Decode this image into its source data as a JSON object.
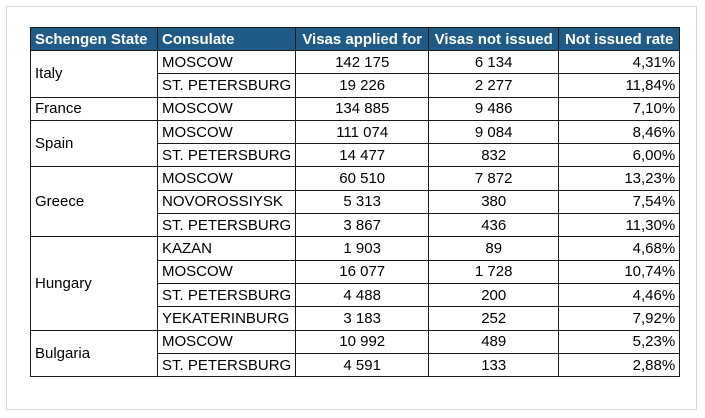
{
  "headers": [
    "Schengen State",
    "Consulate",
    "Visas applied for",
    "Visas not issued",
    "Not issued rate"
  ],
  "groups": [
    {
      "state": "Italy",
      "rows": [
        {
          "consulate": "MOSCOW",
          "applied": "142 175",
          "not_issued": "6 134",
          "rate": "4,31%"
        },
        {
          "consulate": "ST. PETERSBURG",
          "applied": "19 226",
          "not_issued": "2 277",
          "rate": "11,84%"
        }
      ]
    },
    {
      "state": "France",
      "rows": [
        {
          "consulate": "MOSCOW",
          "applied": "134 885",
          "not_issued": "9 486",
          "rate": "7,10%"
        }
      ]
    },
    {
      "state": "Spain",
      "rows": [
        {
          "consulate": "MOSCOW",
          "applied": "111 074",
          "not_issued": "9 084",
          "rate": "8,46%"
        },
        {
          "consulate": "ST. PETERSBURG",
          "applied": "14 477",
          "not_issued": "832",
          "rate": "6,00%"
        }
      ]
    },
    {
      "state": "Greece",
      "rows": [
        {
          "consulate": "MOSCOW",
          "applied": "60 510",
          "not_issued": "7 872",
          "rate": "13,23%"
        },
        {
          "consulate": "NOVOROSSIYSK",
          "applied": "5 313",
          "not_issued": "380",
          "rate": "7,54%"
        },
        {
          "consulate": "ST. PETERSBURG",
          "applied": "3 867",
          "not_issued": "436",
          "rate": "11,30%"
        }
      ]
    },
    {
      "state": "Hungary",
      "rows": [
        {
          "consulate": "KAZAN",
          "applied": "1 903",
          "not_issued": "89",
          "rate": "4,68%"
        },
        {
          "consulate": "MOSCOW",
          "applied": "16 077",
          "not_issued": "1 728",
          "rate": "10,74%"
        },
        {
          "consulate": "ST. PETERSBURG",
          "applied": "4 488",
          "not_issued": "200",
          "rate": "4,46%"
        },
        {
          "consulate": "YEKATERINBURG",
          "applied": "3 183",
          "not_issued": "252",
          "rate": "7,92%"
        }
      ]
    },
    {
      "state": "Bulgaria",
      "rows": [
        {
          "consulate": "MOSCOW",
          "applied": "10 992",
          "not_issued": "489",
          "rate": "5,23%"
        },
        {
          "consulate": "ST. PETERSBURG",
          "applied": "4 591",
          "not_issued": "133",
          "rate": "2,88%"
        }
      ]
    }
  ],
  "colors": {
    "header_bg": "#1f5b86",
    "header_text": "#ffffff",
    "grid": "#1a1a1a"
  }
}
